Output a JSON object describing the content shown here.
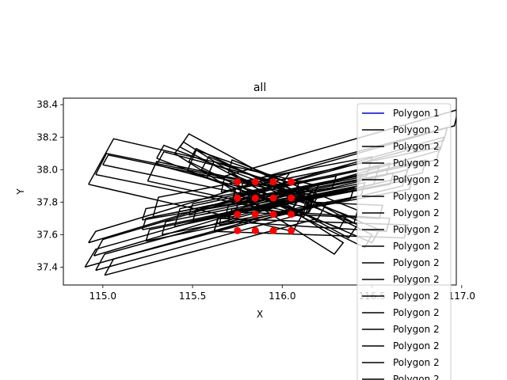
{
  "chart_data": {
    "type": "line",
    "title": "all",
    "xlabel": "X",
    "ylabel": "Y",
    "xlim": [
      114.78,
      116.97
    ],
    "ylim": [
      37.29,
      38.44
    ],
    "x_ticks": [
      115.0,
      115.5,
      116.0,
      116.5,
      117.0
    ],
    "x_tick_labels": [
      "115.0",
      "115.5",
      "116.0",
      "116.5",
      "117.0"
    ],
    "y_ticks": [
      37.4,
      37.6,
      37.8,
      38.0,
      38.2,
      38.4
    ],
    "y_tick_labels": [
      "37.4",
      "37.6",
      "37.8",
      "38.0",
      "38.2",
      "38.4"
    ],
    "grid": false,
    "legend_placement": "top-right (overflowing)",
    "legend_entries": [
      {
        "label": "Polygon 1",
        "color": "#0000cc"
      },
      {
        "label": "Polygon 2",
        "color": "#000000"
      },
      {
        "label": "Polygon 2",
        "color": "#000000"
      },
      {
        "label": "Polygon 2",
        "color": "#000000"
      },
      {
        "label": "Polygon 2",
        "color": "#000000"
      },
      {
        "label": "Polygon 2",
        "color": "#000000"
      },
      {
        "label": "Polygon 2",
        "color": "#000000"
      },
      {
        "label": "Polygon 2",
        "color": "#000000"
      },
      {
        "label": "Polygon 2",
        "color": "#000000"
      },
      {
        "label": "Polygon 2",
        "color": "#000000"
      },
      {
        "label": "Polygon 2",
        "color": "#000000"
      },
      {
        "label": "Polygon 2",
        "color": "#000000"
      },
      {
        "label": "Polygon 2",
        "color": "#000000"
      },
      {
        "label": "Polygon 2",
        "color": "#000000"
      },
      {
        "label": "Polygon 2",
        "color": "#000000"
      },
      {
        "label": "Polygon 2",
        "color": "#000000"
      },
      {
        "label": "Polygon 2",
        "color": "#000000"
      }
    ],
    "polygon1": {
      "name": "Polygon 1",
      "color": "#0000cc",
      "points": [
        [
          115.84,
          37.62
        ],
        [
          115.87,
          37.62
        ]
      ]
    },
    "points_series": {
      "color": "#ff0000",
      "x": [
        115.75,
        115.85,
        115.95,
        116.05
      ],
      "y": [
        37.625,
        37.725,
        37.825,
        37.925
      ]
    },
    "polygons_color": "#000000",
    "polygons": [
      [
        [
          114.92,
          37.91
        ],
        [
          115.06,
          38.19
        ],
        [
          116.2,
          37.9
        ],
        [
          116.06,
          37.62
        ]
      ],
      [
        [
          114.96,
          37.97
        ],
        [
          115.02,
          38.1
        ],
        [
          116.18,
          37.84
        ],
        [
          116.12,
          37.71
        ]
      ],
      [
        [
          115.0,
          38.03
        ],
        [
          115.03,
          38.09
        ],
        [
          116.16,
          37.83
        ],
        [
          116.13,
          37.77
        ]
      ],
      [
        [
          115.25,
          37.93
        ],
        [
          115.3,
          38.05
        ],
        [
          116.1,
          37.86
        ],
        [
          116.05,
          37.74
        ]
      ],
      [
        [
          115.3,
          38.03
        ],
        [
          115.34,
          38.11
        ],
        [
          116.02,
          37.91
        ],
        [
          115.98,
          37.83
        ]
      ],
      [
        [
          115.47,
          37.99
        ],
        [
          115.52,
          38.12
        ],
        [
          116.16,
          37.87
        ],
        [
          116.11,
          37.74
        ]
      ],
      [
        [
          115.58,
          37.95
        ],
        [
          115.62,
          38.05
        ],
        [
          116.18,
          37.83
        ],
        [
          116.14,
          37.73
        ]
      ],
      [
        [
          114.92,
          37.55
        ],
        [
          114.96,
          37.62
        ],
        [
          116.04,
          37.98
        ],
        [
          116.0,
          37.91
        ]
      ],
      [
        [
          114.95,
          37.47
        ],
        [
          115.0,
          37.57
        ],
        [
          116.1,
          37.93
        ],
        [
          116.05,
          37.83
        ]
      ],
      [
        [
          114.9,
          37.4
        ],
        [
          114.96,
          37.51
        ],
        [
          116.12,
          37.87
        ],
        [
          116.06,
          37.76
        ]
      ],
      [
        [
          114.96,
          37.38
        ],
        [
          115.01,
          37.48
        ],
        [
          116.2,
          37.84
        ],
        [
          116.15,
          37.74
        ]
      ],
      [
        [
          115.01,
          37.35
        ],
        [
          115.06,
          37.45
        ],
        [
          116.25,
          37.8
        ],
        [
          116.2,
          37.7
        ]
      ],
      [
        [
          115.22,
          37.69
        ],
        [
          115.24,
          37.76
        ],
        [
          116.3,
          37.96
        ],
        [
          116.28,
          37.89
        ]
      ],
      [
        [
          115.24,
          37.56
        ],
        [
          115.26,
          37.63
        ],
        [
          116.4,
          37.89
        ],
        [
          116.38,
          37.82
        ]
      ],
      [
        [
          115.22,
          37.63
        ],
        [
          115.24,
          37.7
        ],
        [
          116.44,
          37.97
        ],
        [
          116.42,
          37.9
        ]
      ],
      [
        [
          115.33,
          37.6
        ],
        [
          115.35,
          37.68
        ],
        [
          116.46,
          37.92
        ],
        [
          116.44,
          37.84
        ]
      ],
      [
        [
          115.28,
          37.71
        ],
        [
          115.31,
          37.83
        ],
        [
          116.5,
          38.08
        ],
        [
          116.47,
          37.96
        ]
      ],
      [
        [
          115.4,
          37.65
        ],
        [
          115.43,
          37.76
        ],
        [
          116.54,
          38.02
        ],
        [
          116.51,
          37.91
        ]
      ],
      [
        [
          115.48,
          37.72
        ],
        [
          115.5,
          37.79
        ],
        [
          116.6,
          38.04
        ],
        [
          116.58,
          37.97
        ]
      ],
      [
        [
          115.5,
          37.68
        ],
        [
          115.52,
          37.75
        ],
        [
          116.62,
          37.98
        ],
        [
          116.6,
          37.91
        ]
      ],
      [
        [
          115.62,
          37.62
        ],
        [
          115.65,
          37.72
        ],
        [
          116.7,
          38.0
        ],
        [
          116.67,
          37.9
        ]
      ],
      [
        [
          115.65,
          37.66
        ],
        [
          115.66,
          37.72
        ],
        [
          116.72,
          37.94
        ],
        [
          116.71,
          37.88
        ]
      ],
      [
        [
          115.68,
          37.7
        ],
        [
          115.7,
          37.78
        ],
        [
          116.8,
          38.06
        ],
        [
          116.78,
          37.98
        ]
      ],
      [
        [
          115.72,
          37.8
        ],
        [
          115.74,
          37.88
        ],
        [
          116.88,
          38.14
        ],
        [
          116.86,
          38.06
        ]
      ],
      [
        [
          115.66,
          37.86
        ],
        [
          115.68,
          37.96
        ],
        [
          116.98,
          38.37
        ],
        [
          116.96,
          38.27
        ]
      ],
      [
        [
          115.76,
          37.84
        ],
        [
          115.78,
          37.92
        ],
        [
          116.92,
          38.26
        ],
        [
          116.9,
          38.18
        ]
      ],
      [
        [
          115.8,
          37.78
        ],
        [
          115.82,
          37.86
        ],
        [
          116.9,
          38.2
        ],
        [
          116.88,
          38.12
        ]
      ],
      [
        [
          115.3,
          38.07
        ],
        [
          115.34,
          38.15
        ],
        [
          116.36,
          37.72
        ],
        [
          116.32,
          37.64
        ]
      ],
      [
        [
          115.43,
          38.14
        ],
        [
          115.48,
          38.22
        ],
        [
          116.42,
          37.66
        ],
        [
          116.37,
          37.58
        ]
      ],
      [
        [
          115.4,
          38.1
        ],
        [
          115.45,
          38.17
        ],
        [
          116.34,
          37.55
        ],
        [
          116.29,
          37.48
        ]
      ],
      [
        [
          115.48,
          38.05
        ],
        [
          115.52,
          38.13
        ],
        [
          116.5,
          37.6
        ],
        [
          116.46,
          37.52
        ]
      ],
      [
        [
          115.55,
          38.0
        ],
        [
          115.59,
          38.08
        ],
        [
          116.54,
          37.63
        ],
        [
          116.5,
          37.55
        ]
      ],
      [
        [
          115.7,
          37.98
        ],
        [
          115.72,
          38.06
        ],
        [
          116.42,
          37.75
        ],
        [
          116.4,
          37.67
        ]
      ],
      [
        [
          115.62,
          37.62
        ],
        [
          115.64,
          37.7
        ],
        [
          116.7,
          37.66
        ],
        [
          116.68,
          37.58
        ]
      ],
      [
        [
          115.7,
          37.68
        ],
        [
          115.72,
          37.76
        ],
        [
          116.6,
          37.7
        ],
        [
          116.58,
          37.62
        ]
      ],
      [
        [
          115.74,
          37.74
        ],
        [
          115.76,
          37.82
        ],
        [
          116.56,
          37.78
        ],
        [
          116.54,
          37.7
        ]
      ]
    ]
  }
}
